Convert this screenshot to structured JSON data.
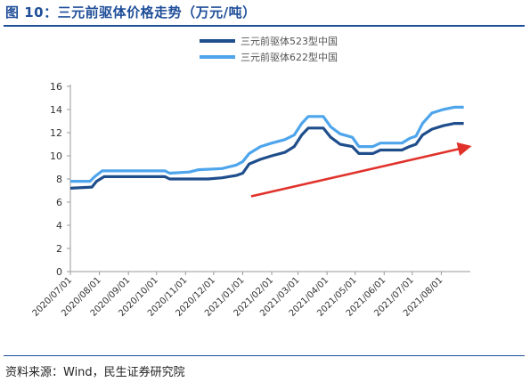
{
  "figure": {
    "title": "图 10：三元前驱体价格走势（万元/吨）",
    "source": "资料来源：Wind，民生证券研究院"
  },
  "colors": {
    "title": "#1f4e99",
    "series_523": "#1f4e8c",
    "series_622": "#4ea5ec",
    "arrow": "#e0312a",
    "axis": "#999999",
    "text": "#333333"
  },
  "chart_data": {
    "type": "line",
    "title": "",
    "xlabel": "",
    "ylabel": "",
    "ylim": [
      0,
      16
    ],
    "yticks": [
      0,
      2,
      4,
      6,
      8,
      10,
      12,
      14,
      16
    ],
    "xlim": [
      "2020-07-01",
      "2021-09-01"
    ],
    "xticks": [
      "2020/07/01",
      "2020/08/01",
      "2020/09/01",
      "2020/10/01",
      "2020/11/01",
      "2020/12/01",
      "2021/01/01",
      "2021/02/01",
      "2021/03/01",
      "2021/04/01",
      "2021/05/01",
      "2021/06/01",
      "2021/07/01",
      "2021/08/01"
    ],
    "grid": false,
    "legend_position": "top-center",
    "series": [
      {
        "name": "三元前驱体523型中国",
        "points": [
          [
            "2020-07-01",
            7.2
          ],
          [
            "2020-07-24",
            7.3
          ],
          [
            "2020-07-29",
            7.8
          ],
          [
            "2020-08-06",
            8.2
          ],
          [
            "2020-10-10",
            8.2
          ],
          [
            "2020-10-15",
            8.0
          ],
          [
            "2020-11-25",
            8.0
          ],
          [
            "2020-12-10",
            8.1
          ],
          [
            "2020-12-25",
            8.3
          ],
          [
            "2021-01-01",
            8.5
          ],
          [
            "2021-01-08",
            9.3
          ],
          [
            "2021-01-20",
            9.7
          ],
          [
            "2021-02-01",
            10.0
          ],
          [
            "2021-02-15",
            10.3
          ],
          [
            "2021-02-25",
            10.8
          ],
          [
            "2021-03-05",
            11.8
          ],
          [
            "2021-03-12",
            12.4
          ],
          [
            "2021-03-28",
            12.4
          ],
          [
            "2021-04-05",
            11.6
          ],
          [
            "2021-04-15",
            11.0
          ],
          [
            "2021-04-28",
            10.8
          ],
          [
            "2021-05-05",
            10.2
          ],
          [
            "2021-05-20",
            10.2
          ],
          [
            "2021-05-28",
            10.5
          ],
          [
            "2021-06-20",
            10.5
          ],
          [
            "2021-06-28",
            10.8
          ],
          [
            "2021-07-05",
            11.0
          ],
          [
            "2021-07-12",
            11.8
          ],
          [
            "2021-07-22",
            12.3
          ],
          [
            "2021-08-03",
            12.6
          ],
          [
            "2021-08-15",
            12.8
          ],
          [
            "2021-08-25",
            12.8
          ]
        ]
      },
      {
        "name": "三元前驱体622型中国",
        "points": [
          [
            "2020-07-01",
            7.8
          ],
          [
            "2020-07-22",
            7.8
          ],
          [
            "2020-07-27",
            8.2
          ],
          [
            "2020-08-04",
            8.7
          ],
          [
            "2020-10-10",
            8.7
          ],
          [
            "2020-10-15",
            8.5
          ],
          [
            "2020-11-05",
            8.6
          ],
          [
            "2020-11-15",
            8.8
          ],
          [
            "2020-12-10",
            8.9
          ],
          [
            "2020-12-25",
            9.2
          ],
          [
            "2021-01-01",
            9.5
          ],
          [
            "2021-01-08",
            10.2
          ],
          [
            "2021-01-20",
            10.8
          ],
          [
            "2021-02-01",
            11.1
          ],
          [
            "2021-02-15",
            11.4
          ],
          [
            "2021-02-25",
            11.8
          ],
          [
            "2021-03-05",
            12.8
          ],
          [
            "2021-03-12",
            13.4
          ],
          [
            "2021-03-28",
            13.4
          ],
          [
            "2021-04-05",
            12.5
          ],
          [
            "2021-04-15",
            11.9
          ],
          [
            "2021-04-28",
            11.6
          ],
          [
            "2021-05-05",
            10.8
          ],
          [
            "2021-05-20",
            10.8
          ],
          [
            "2021-05-28",
            11.1
          ],
          [
            "2021-06-20",
            11.1
          ],
          [
            "2021-06-28",
            11.5
          ],
          [
            "2021-07-05",
            11.7
          ],
          [
            "2021-07-12",
            12.8
          ],
          [
            "2021-07-22",
            13.7
          ],
          [
            "2021-08-03",
            14.0
          ],
          [
            "2021-08-15",
            14.2
          ],
          [
            "2021-08-25",
            14.2
          ]
        ]
      }
    ],
    "annotations": [
      {
        "type": "arrow",
        "from": [
          "2021-01-10",
          6.5
        ],
        "to": [
          "2021-08-31",
          10.8
        ]
      }
    ]
  }
}
